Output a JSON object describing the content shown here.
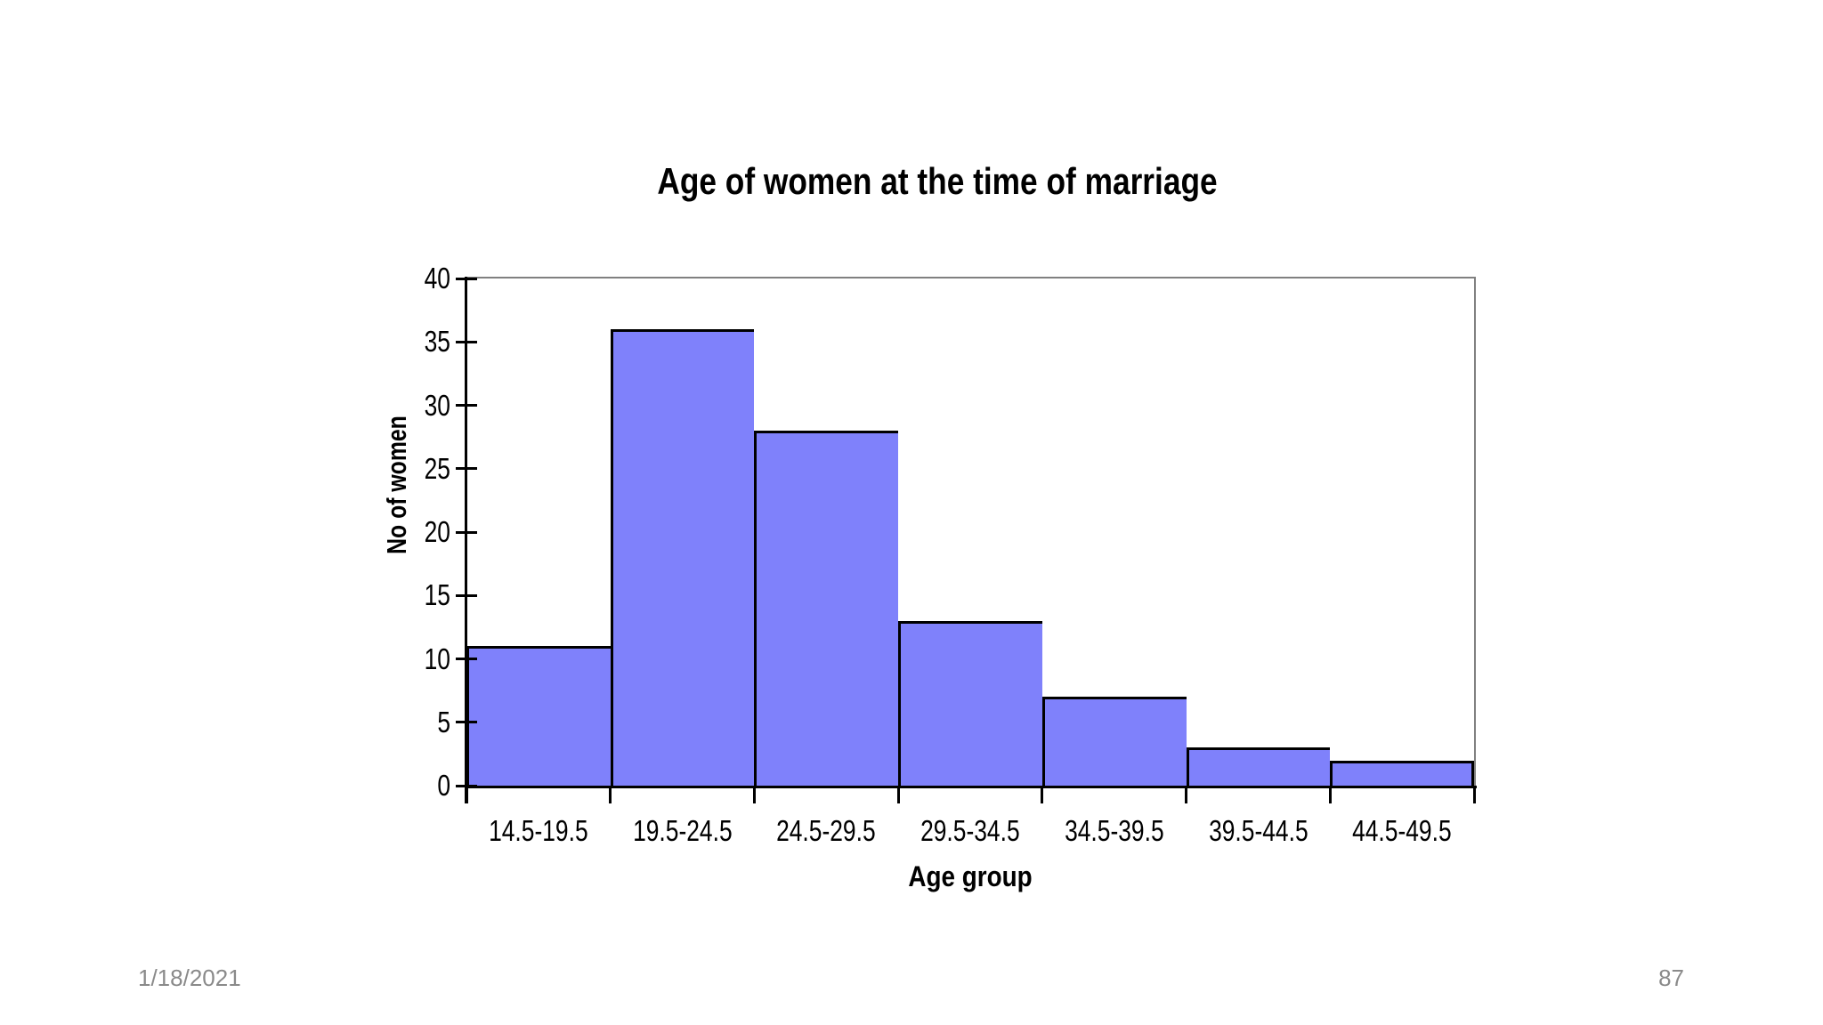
{
  "slide": {
    "footer_date": "1/18/2021",
    "slide_number": "87"
  },
  "chart_data": {
    "type": "bar",
    "subtype": "histogram",
    "title": "Age of women at the time of marriage",
    "xlabel": "Age group",
    "ylabel": "No of women",
    "categories": [
      "14.5-19.5",
      "19.5-24.5",
      "24.5-29.5",
      "29.5-34.5",
      "34.5-39.5",
      "39.5-44.5",
      "44.5-49.5"
    ],
    "values": [
      11,
      36,
      28,
      13,
      7,
      3,
      2
    ],
    "ylim": [
      0,
      40
    ],
    "yticks": [
      0,
      5,
      10,
      15,
      20,
      25,
      30,
      35,
      40
    ],
    "grid": "none",
    "legend": "none",
    "bar_gap": 0,
    "colors": {
      "bar_fill": "#7F81FB",
      "bar_border": "#000000",
      "axis": "#000000",
      "plot_frame": "#808080",
      "text": "#000000",
      "footer_text": "#8A8A8A",
      "background": "#FFFFFF"
    }
  }
}
